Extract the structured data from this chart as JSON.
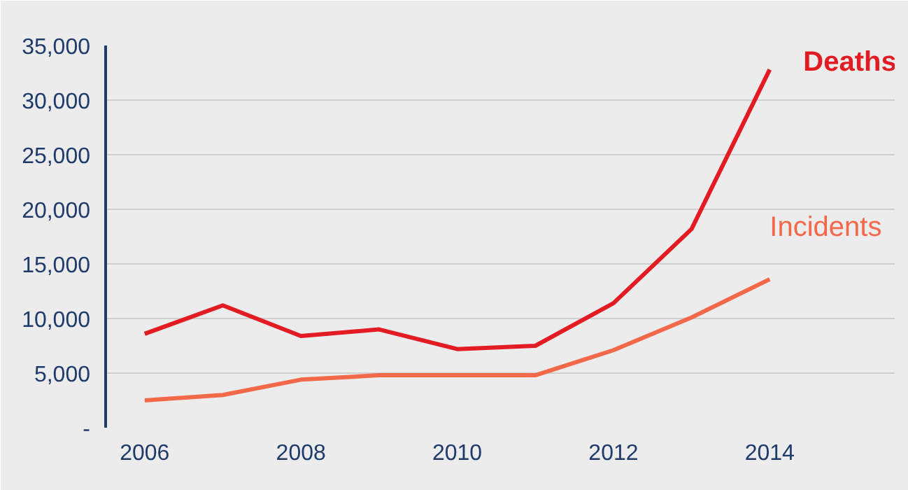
{
  "chart_data": {
    "type": "line",
    "x": [
      2006,
      2007,
      2008,
      2009,
      2010,
      2011,
      2012,
      2013,
      2014
    ],
    "series": [
      {
        "name": "Deaths",
        "color": "#e31b23",
        "values": [
          8600,
          11200,
          8400,
          9000,
          7200,
          7500,
          11400,
          18200,
          32800
        ]
      },
      {
        "name": "Incidents",
        "color": "#f26849",
        "values": [
          2500,
          3000,
          4400,
          4800,
          4800,
          4800,
          7100,
          10100,
          13600
        ]
      }
    ],
    "xlim": [
      2005.5,
      2015.6
    ],
    "xticks": [
      2006,
      2008,
      2010,
      2012,
      2014
    ],
    "ylim": [
      0,
      35000
    ],
    "yticks": [
      {
        "value": 0,
        "label": "-"
      },
      {
        "value": 5000,
        "label": "5,000"
      },
      {
        "value": 10000,
        "label": "10,000"
      },
      {
        "value": 15000,
        "label": "15,000"
      },
      {
        "value": 20000,
        "label": "20,000"
      },
      {
        "value": 25000,
        "label": "25,000"
      },
      {
        "value": 30000,
        "label": "30,000"
      },
      {
        "value": 35000,
        "label": "35,000"
      }
    ],
    "grid": "y",
    "marker": "none",
    "line_style": "solid"
  }
}
